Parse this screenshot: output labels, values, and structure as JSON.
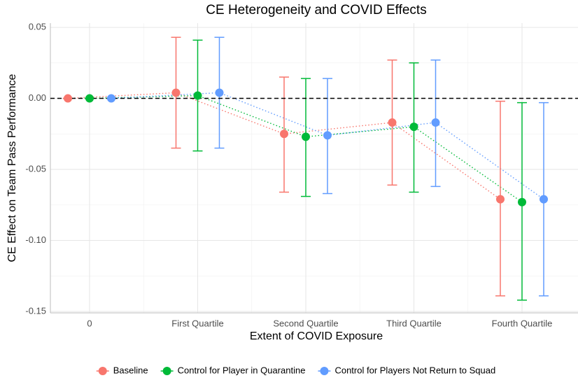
{
  "chart_data": {
    "type": "errorbar",
    "title": "CE Heterogeneity and COVID Effects",
    "xlabel": "Extent of COVID Exposure",
    "ylabel": "CE Effect on Team Pass Performance",
    "categories": [
      "0",
      "First Quartile",
      "Second Quartile",
      "Third Quartile",
      "Fourth Quartile"
    ],
    "ylim": [
      -0.151,
      0.053
    ],
    "yticks": [
      {
        "value": -0.15,
        "label": "-0.15"
      },
      {
        "value": -0.1,
        "label": "-0.10"
      },
      {
        "value": -0.05,
        "label": "-0.05"
      },
      {
        "value": 0,
        "label": "0.00"
      },
      {
        "value": 0.05,
        "label": "0.05"
      }
    ],
    "hline": 0,
    "grid": true,
    "legend": "bottom",
    "series": [
      {
        "name": "Baseline",
        "color": "#F8766D",
        "values": [
          0,
          0.004,
          -0.025,
          -0.017,
          -0.071
        ],
        "lower": [
          0,
          -0.035,
          -0.066,
          -0.061,
          -0.139
        ],
        "upper": [
          0,
          0.043,
          0.015,
          0.027,
          -0.002
        ]
      },
      {
        "name": "Control for Player in Quarantine",
        "color": "#00BA38",
        "values": [
          0,
          0.002,
          -0.027,
          -0.02,
          -0.073
        ],
        "lower": [
          0,
          -0.037,
          -0.069,
          -0.066,
          -0.142
        ],
        "upper": [
          0,
          0.041,
          0.014,
          0.025,
          -0.003
        ]
      },
      {
        "name": "Control for Players Not Return to Squad",
        "color": "#619CFF",
        "values": [
          0,
          0.004,
          -0.026,
          -0.017,
          -0.071
        ],
        "lower": [
          0,
          -0.035,
          -0.067,
          -0.062,
          -0.139
        ],
        "upper": [
          0,
          0.043,
          0.014,
          0.027,
          -0.003
        ]
      }
    ]
  }
}
